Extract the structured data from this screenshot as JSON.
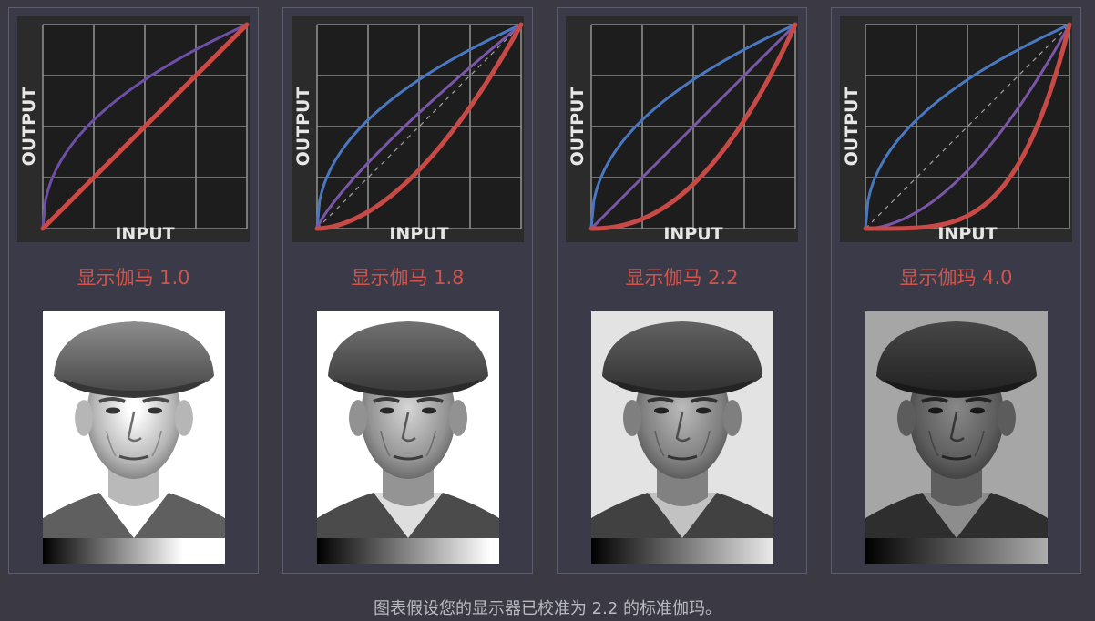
{
  "chart_data": [
    {
      "type": "line",
      "xlabel": "INPUT",
      "ylabel": "OUTPUT",
      "xlim": [
        0,
        1
      ],
      "ylim": [
        0,
        1
      ],
      "grid": true,
      "gamma_label": "显示伽马 1.0",
      "display_gamma": 1.0,
      "series": [
        {
          "color": "#6e4fa8",
          "exponent": 0.4545,
          "x": [
            0,
            0.25,
            0.5,
            0.75,
            1
          ],
          "y": [
            0,
            0.53,
            0.73,
            0.88,
            1
          ]
        },
        {
          "color": "#c84a46",
          "exponent": 1.0,
          "x": [
            0,
            0.25,
            0.5,
            0.75,
            1
          ],
          "y": [
            0,
            0.25,
            0.5,
            0.75,
            1
          ]
        }
      ],
      "diagonal": false
    },
    {
      "type": "line",
      "xlabel": "INPUT",
      "ylabel": "OUTPUT",
      "xlim": [
        0,
        1
      ],
      "ylim": [
        0,
        1
      ],
      "grid": true,
      "gamma_label": "显示伽马 1.8",
      "display_gamma": 1.8,
      "series": [
        {
          "color": "#4a78c0",
          "exponent": 0.4545,
          "x": [
            0,
            0.25,
            0.5,
            0.75,
            1
          ],
          "y": [
            0,
            0.53,
            0.73,
            0.88,
            1
          ]
        },
        {
          "color": "#7a56a8",
          "exponent": 0.818,
          "x": [
            0,
            0.25,
            0.5,
            0.75,
            1
          ],
          "y": [
            0,
            0.32,
            0.57,
            0.79,
            1
          ]
        },
        {
          "color": "#c84a46",
          "exponent": 1.8,
          "x": [
            0,
            0.25,
            0.5,
            0.75,
            1
          ],
          "y": [
            0,
            0.08,
            0.29,
            0.6,
            1
          ]
        }
      ],
      "diagonal": true
    },
    {
      "type": "line",
      "xlabel": "INPUT",
      "ylabel": "OUTPUT",
      "xlim": [
        0,
        1
      ],
      "ylim": [
        0,
        1
      ],
      "grid": true,
      "gamma_label": "显示伽马 2.2",
      "display_gamma": 2.2,
      "series": [
        {
          "color": "#4a78c0",
          "exponent": 0.4545,
          "x": [
            0,
            0.25,
            0.5,
            0.75,
            1
          ],
          "y": [
            0,
            0.53,
            0.73,
            0.88,
            1
          ]
        },
        {
          "color": "#7a56a8",
          "exponent": 1.0,
          "x": [
            0,
            0.25,
            0.5,
            0.75,
            1
          ],
          "y": [
            0,
            0.25,
            0.5,
            0.75,
            1
          ]
        },
        {
          "color": "#c84a46",
          "exponent": 2.2,
          "x": [
            0,
            0.25,
            0.5,
            0.75,
            1
          ],
          "y": [
            0,
            0.05,
            0.22,
            0.53,
            1
          ]
        }
      ],
      "diagonal": false
    },
    {
      "type": "line",
      "xlabel": "INPUT",
      "ylabel": "OUTPUT",
      "xlim": [
        0,
        1
      ],
      "ylim": [
        0,
        1
      ],
      "grid": true,
      "gamma_label": "显示伽玛 4.0",
      "display_gamma": 4.0,
      "series": [
        {
          "color": "#4a78c0",
          "exponent": 0.4545,
          "x": [
            0,
            0.25,
            0.5,
            0.75,
            1
          ],
          "y": [
            0,
            0.53,
            0.73,
            0.88,
            1
          ]
        },
        {
          "color": "#7a56a8",
          "exponent": 1.818,
          "x": [
            0,
            0.25,
            0.5,
            0.75,
            1
          ],
          "y": [
            0,
            0.08,
            0.28,
            0.59,
            1
          ]
        },
        {
          "color": "#c84a46",
          "exponent": 4.0,
          "x": [
            0,
            0.25,
            0.5,
            0.75,
            1
          ],
          "y": [
            0,
            0.004,
            0.06,
            0.32,
            1
          ]
        }
      ],
      "diagonal": true
    }
  ],
  "caption": "图表假设您的显示器已校准为 2.2 的标准伽玛。",
  "photo_brightness": [
    1.3,
    1.05,
    0.92,
    0.68
  ],
  "colors": {
    "background": "#3b3a44",
    "panel": "#3a3a48",
    "label_red": "#d0544c",
    "caption": "#b9b9c0"
  }
}
